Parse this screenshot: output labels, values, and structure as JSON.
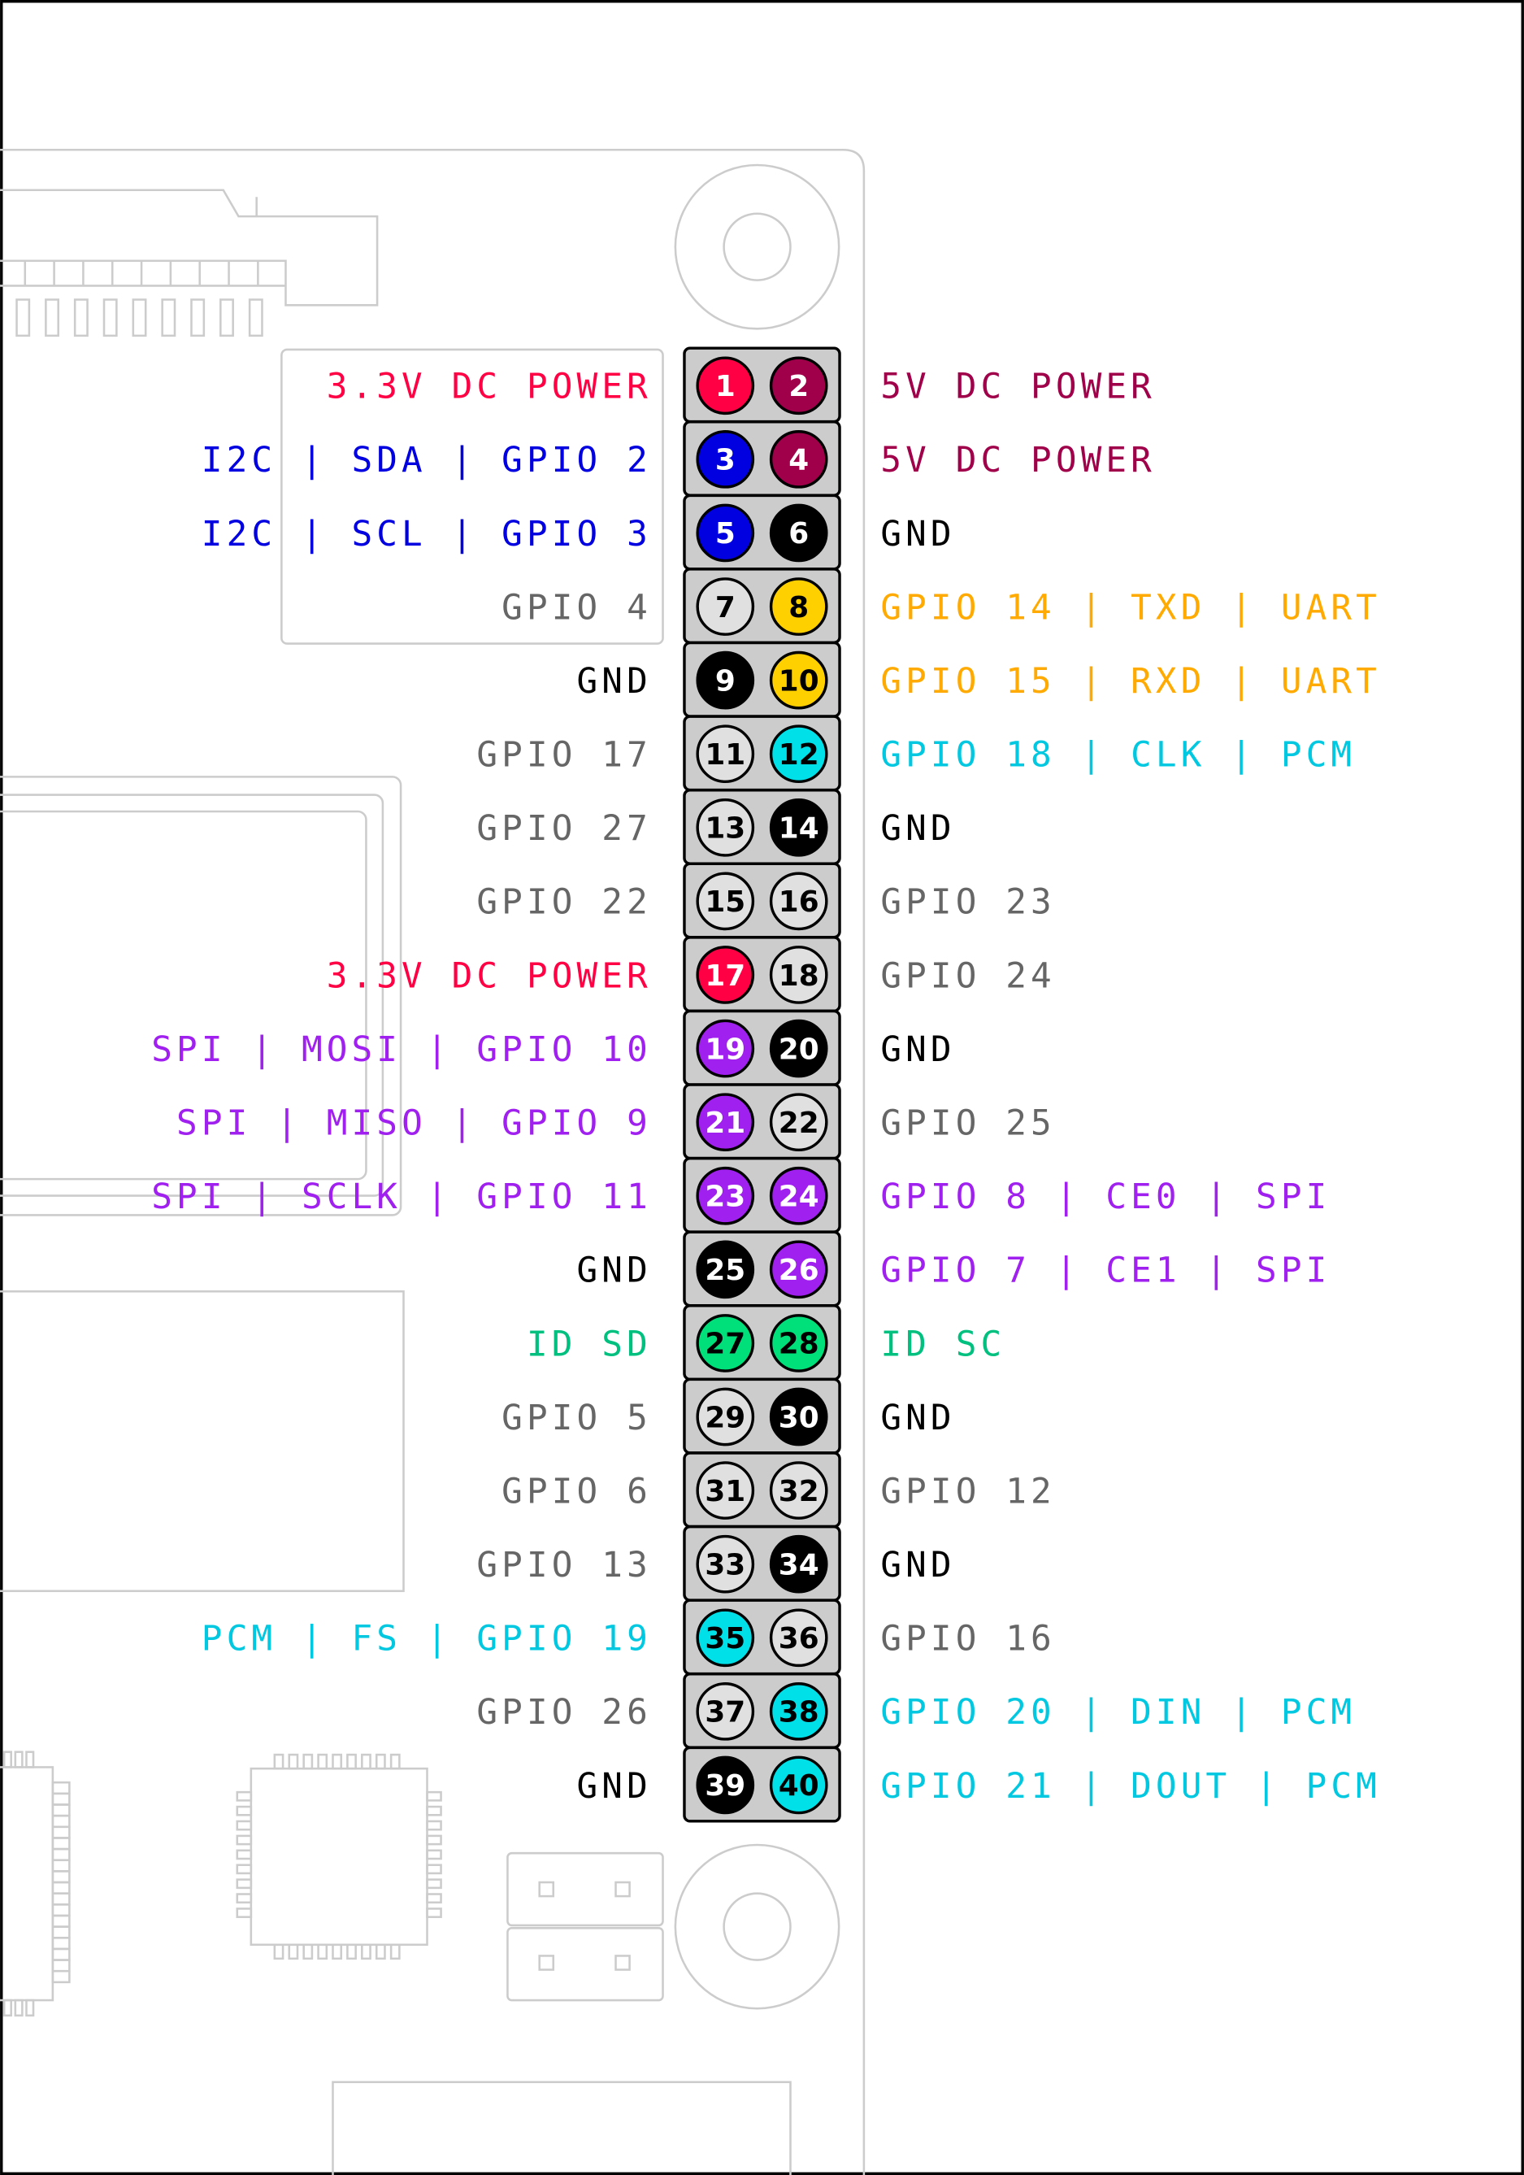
{
  "colors": {
    "power_3v3": "#ff0044",
    "power_5v": "#a0004a",
    "i2c": "#0000e0",
    "ground": "#000000",
    "gpio": "#e0e0e0",
    "uart": "#ffd000",
    "pcm": "#00e0e8",
    "spi": "#a020f0",
    "id": "#00e07a",
    "text_gpio": "#666666",
    "text_ground": "#000000",
    "text_uart": "#ffaa00",
    "text_pcm": "#00c8e0",
    "text_id": "#00c080",
    "header_fill": "#cccccc",
    "board_outline": "#cccccc"
  },
  "pins": [
    {
      "n": "1",
      "fill": "power_3v3",
      "label": "3.3V DC POWER",
      "text": "power_3v3"
    },
    {
      "n": "2",
      "fill": "power_5v",
      "label": "5V DC POWER",
      "text": "power_5v"
    },
    {
      "n": "3",
      "fill": "i2c",
      "label": "I2C | SDA | GPIO 2",
      "text": "i2c"
    },
    {
      "n": "4",
      "fill": "power_5v",
      "label": "5V DC POWER",
      "text": "power_5v"
    },
    {
      "n": "5",
      "fill": "i2c",
      "label": "I2C | SCL | GPIO 3",
      "text": "i2c"
    },
    {
      "n": "6",
      "fill": "ground",
      "label": "GND",
      "text": "text_ground"
    },
    {
      "n": "7",
      "fill": "gpio",
      "label": "GPIO 4",
      "text": "text_gpio"
    },
    {
      "n": "8",
      "fill": "uart",
      "label": "GPIO 14 | TXD | UART",
      "text": "text_uart"
    },
    {
      "n": "9",
      "fill": "ground",
      "label": "GND",
      "text": "text_ground"
    },
    {
      "n": "10",
      "fill": "uart",
      "label": "GPIO 15 | RXD | UART",
      "text": "text_uart"
    },
    {
      "n": "11",
      "fill": "gpio",
      "label": "GPIO 17",
      "text": "text_gpio"
    },
    {
      "n": "12",
      "fill": "pcm",
      "label": "GPIO 18 | CLK | PCM",
      "text": "text_pcm"
    },
    {
      "n": "13",
      "fill": "gpio",
      "label": "GPIO 27",
      "text": "text_gpio"
    },
    {
      "n": "14",
      "fill": "ground",
      "label": "GND",
      "text": "text_ground"
    },
    {
      "n": "15",
      "fill": "gpio",
      "label": "GPIO 22",
      "text": "text_gpio"
    },
    {
      "n": "16",
      "fill": "gpio",
      "label": "GPIO 23",
      "text": "text_gpio"
    },
    {
      "n": "17",
      "fill": "power_3v3",
      "label": "3.3V DC POWER",
      "text": "power_3v3"
    },
    {
      "n": "18",
      "fill": "gpio",
      "label": "GPIO 24",
      "text": "text_gpio"
    },
    {
      "n": "19",
      "fill": "spi",
      "label": "SPI | MOSI | GPIO 10",
      "text": "spi"
    },
    {
      "n": "20",
      "fill": "ground",
      "label": "GND",
      "text": "text_ground"
    },
    {
      "n": "21",
      "fill": "spi",
      "label": "SPI | MISO | GPIO 9",
      "text": "spi"
    },
    {
      "n": "22",
      "fill": "gpio",
      "label": "GPIO 25",
      "text": "text_gpio"
    },
    {
      "n": "23",
      "fill": "spi",
      "label": "SPI | SCLK | GPIO 11",
      "text": "spi"
    },
    {
      "n": "24",
      "fill": "spi",
      "label": "GPIO 8 | CE0 | SPI",
      "text": "spi"
    },
    {
      "n": "25",
      "fill": "ground",
      "label": "GND",
      "text": "text_ground"
    },
    {
      "n": "26",
      "fill": "spi",
      "label": "GPIO 7 | CE1 | SPI",
      "text": "spi"
    },
    {
      "n": "27",
      "fill": "id",
      "label": "ID SD",
      "text": "text_id"
    },
    {
      "n": "28",
      "fill": "id",
      "label": "ID SC",
      "text": "text_id"
    },
    {
      "n": "29",
      "fill": "gpio",
      "label": "GPIO 5",
      "text": "text_gpio"
    },
    {
      "n": "30",
      "fill": "ground",
      "label": "GND",
      "text": "text_ground"
    },
    {
      "n": "31",
      "fill": "gpio",
      "label": "GPIO 6",
      "text": "text_gpio"
    },
    {
      "n": "32",
      "fill": "gpio",
      "label": "GPIO 12",
      "text": "text_gpio"
    },
    {
      "n": "33",
      "fill": "gpio",
      "label": "GPIO 13",
      "text": "text_gpio"
    },
    {
      "n": "34",
      "fill": "ground",
      "label": "GND",
      "text": "text_ground"
    },
    {
      "n": "35",
      "fill": "pcm",
      "label": "PCM | FS | GPIO 19",
      "text": "text_pcm"
    },
    {
      "n": "36",
      "fill": "gpio",
      "label": "GPIO 16",
      "text": "text_gpio"
    },
    {
      "n": "37",
      "fill": "gpio",
      "label": "GPIO 26",
      "text": "text_gpio"
    },
    {
      "n": "38",
      "fill": "pcm",
      "label": "GPIO 20 | DIN | PCM",
      "text": "text_pcm"
    },
    {
      "n": "39",
      "fill": "ground",
      "label": "GND",
      "text": "text_ground"
    },
    {
      "n": "40",
      "fill": "pcm",
      "label": "GPIO 21 | DOUT | PCM",
      "text": "text_pcm"
    }
  ]
}
